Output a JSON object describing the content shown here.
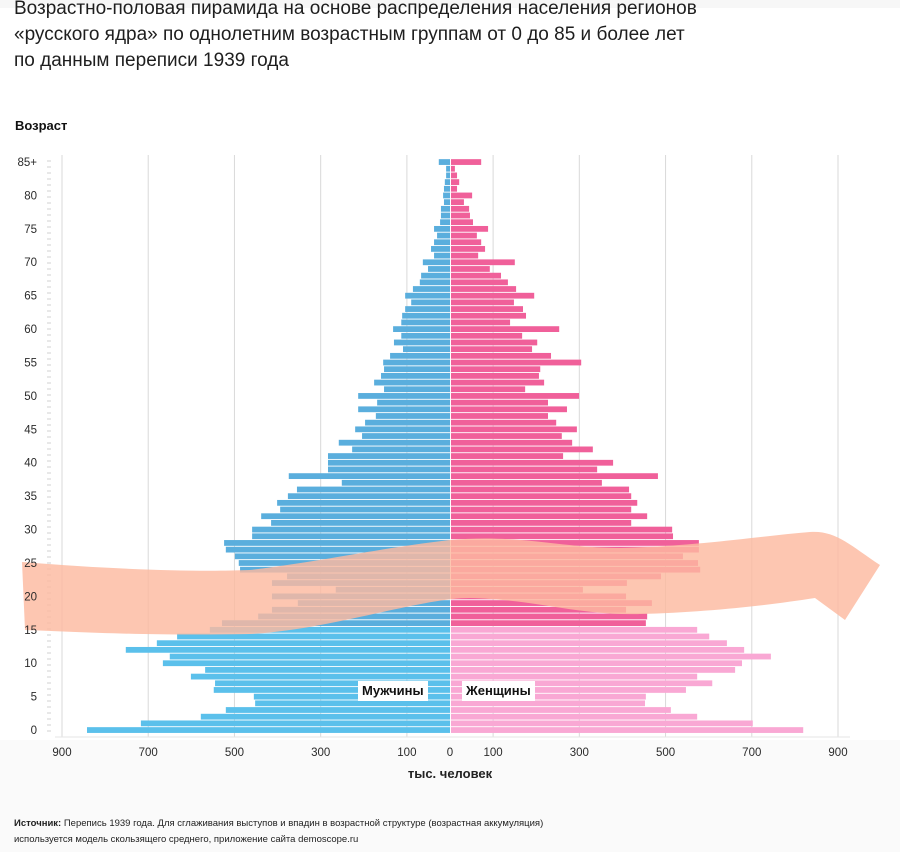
{
  "title_lines": [
    "Возрастно-половая пирамида на основе распределения населения регионов",
    "«русского ядра» по однолетним возрастным группам от 0 до 85 и более лет",
    "по данным переписи 1939 года"
  ],
  "source": {
    "label": "Источник:",
    "text": " Перепись 1939 года. Для сглаживания выступов и впадин в возрастной структуре (возрастная аккумуляция) используется модель скользящего среднего, приложение сайта demoscope.ru"
  },
  "colors": {
    "male": "#5bc0eb",
    "male_old": "#5aaedd",
    "female": "#f9a8d4",
    "female_old": "#f0609a",
    "overlay": "#fdb9a0",
    "grid": "#d9d9d9"
  },
  "chart_data": {
    "type": "bar",
    "orientation": "horizontal-pyramid",
    "title": "Возрастно-половая пирамида, перепись 1939 года",
    "ylabel": "Возраст",
    "xlabel": "тыс. человек",
    "xlim": [
      -900,
      900
    ],
    "x_ticks": [
      {
        "value": -900,
        "label": "900"
      },
      {
        "value": -700,
        "label": "700"
      },
      {
        "value": -500,
        "label": "500"
      },
      {
        "value": -300,
        "label": "300"
      },
      {
        "value": -100,
        "label": "100"
      },
      {
        "value": 0,
        "label": "0"
      },
      {
        "value": 100,
        "label": "100"
      },
      {
        "value": 300,
        "label": "300"
      },
      {
        "value": 500,
        "label": "500"
      },
      {
        "value": 700,
        "label": "700"
      },
      {
        "value": 900,
        "label": "900"
      }
    ],
    "grid_values": [
      -900,
      -700,
      -500,
      -300,
      -100,
      100,
      300,
      500,
      700,
      900
    ],
    "y_ticks": [
      {
        "age": 85,
        "label": "85+"
      },
      {
        "age": 80,
        "label": "80"
      },
      {
        "age": 75,
        "label": "75"
      },
      {
        "age": 70,
        "label": "70"
      },
      {
        "age": 65,
        "label": "65"
      },
      {
        "age": 60,
        "label": "60"
      },
      {
        "age": 55,
        "label": "55"
      },
      {
        "age": 50,
        "label": "50"
      },
      {
        "age": 45,
        "label": "45"
      },
      {
        "age": 40,
        "label": "40"
      },
      {
        "age": 35,
        "label": "35"
      },
      {
        "age": 30,
        "label": "30"
      },
      {
        "age": 25,
        "label": "25"
      },
      {
        "age": 20,
        "label": "20"
      },
      {
        "age": 15,
        "label": "15"
      },
      {
        "age": 10,
        "label": "10"
      },
      {
        "age": 5,
        "label": "5"
      },
      {
        "age": 0,
        "label": "0"
      }
    ],
    "ages": [
      0,
      1,
      2,
      3,
      4,
      5,
      6,
      7,
      8,
      9,
      10,
      11,
      12,
      13,
      14,
      15,
      16,
      17,
      18,
      19,
      20,
      21,
      22,
      23,
      24,
      25,
      26,
      27,
      28,
      29,
      30,
      31,
      32,
      33,
      34,
      35,
      36,
      37,
      38,
      39,
      40,
      41,
      42,
      43,
      44,
      45,
      46,
      47,
      48,
      49,
      50,
      51,
      52,
      53,
      54,
      55,
      56,
      57,
      58,
      59,
      60,
      61,
      62,
      63,
      64,
      65,
      66,
      67,
      68,
      69,
      70,
      71,
      72,
      73,
      74,
      75,
      76,
      77,
      78,
      79,
      80,
      81,
      82,
      83,
      84,
      85
    ],
    "series": [
      {
        "name": "Мужчины",
        "values": [
          842,
          717,
          578,
          520,
          452,
          455,
          548,
          545,
          601,
          568,
          666,
          650,
          752,
          680,
          633,
          557,
          529,
          445,
          413,
          353,
          413,
          265,
          413,
          378,
          487,
          490,
          499,
          520,
          524,
          459,
          459,
          415,
          438,
          394,
          401,
          376,
          355,
          251,
          374,
          283,
          283,
          283,
          227,
          258,
          204,
          220,
          197,
          172,
          213,
          169,
          213,
          153,
          176,
          160,
          153,
          155,
          139,
          109,
          130,
          113,
          132,
          113,
          111,
          104,
          90,
          104,
          86,
          70,
          67,
          51,
          63,
          37,
          44,
          37,
          30,
          37,
          23,
          21,
          21,
          14,
          16,
          14,
          12,
          9,
          9,
          26
        ]
      },
      {
        "name": "Женщины",
        "values": [
          817,
          700,
          571,
          510,
          450,
          452,
          545,
          606,
          571,
          659,
          675,
          742,
          680,
          640,
          599,
          571,
          452,
          455,
          406,
          466,
          406,
          306,
          408,
          487,
          578,
          573,
          538,
          575,
          575,
          515,
          513,
          418,
          455,
          418,
          432,
          418,
          413,
          350,
          480,
          339,
          376,
          260,
          329,
          281,
          257,
          292,
          244,
          225,
          269,
          225,
          297,
          172,
          216,
          204,
          207,
          302,
          232,
          188,
          200,
          165,
          251,
          137,
          174,
          167,
          146,
          193,
          151,
          132,
          116,
          90,
          148,
          63,
          79,
          70,
          60,
          86,
          51,
          44,
          42,
          30,
          49,
          14,
          19,
          14,
          9,
          70
        ]
      }
    ],
    "sex_labels": {
      "male": "Мужчины",
      "female": "Женщины"
    },
    "annotation": "highlight band over ages ~15–28"
  }
}
